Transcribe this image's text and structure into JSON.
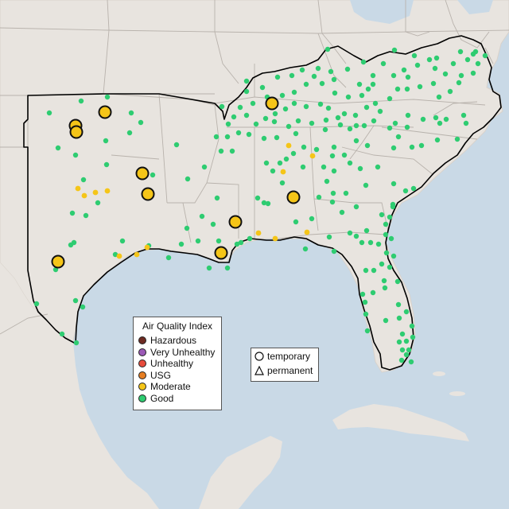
{
  "colors": {
    "ocean": "#c9d9e6",
    "land": "#e8e4df",
    "region_outline": "#000000",
    "state_border": "#b8b2ac",
    "good": "#2ecc71",
    "moderate": "#f5c518",
    "usg": "#e67e22",
    "unhealthy": "#e74c3c",
    "very_unhealthy": "#9b59b6",
    "hazardous": "#6e2c23"
  },
  "legend": {
    "title": "Air Quality Index",
    "categories": [
      {
        "label": "Hazardous",
        "color": "#6e2c23"
      },
      {
        "label": "Very Unhealthy",
        "color": "#9b59b6"
      },
      {
        "label": "Unhealthy",
        "color": "#e74c3c"
      },
      {
        "label": "USG",
        "color": "#e67e22"
      },
      {
        "label": "Moderate",
        "color": "#f5c518"
      },
      {
        "label": "Good",
        "color": "#2ecc71"
      }
    ]
  },
  "monitor_types": {
    "temporary": "temporary",
    "permanent": "permanent"
  }
}
